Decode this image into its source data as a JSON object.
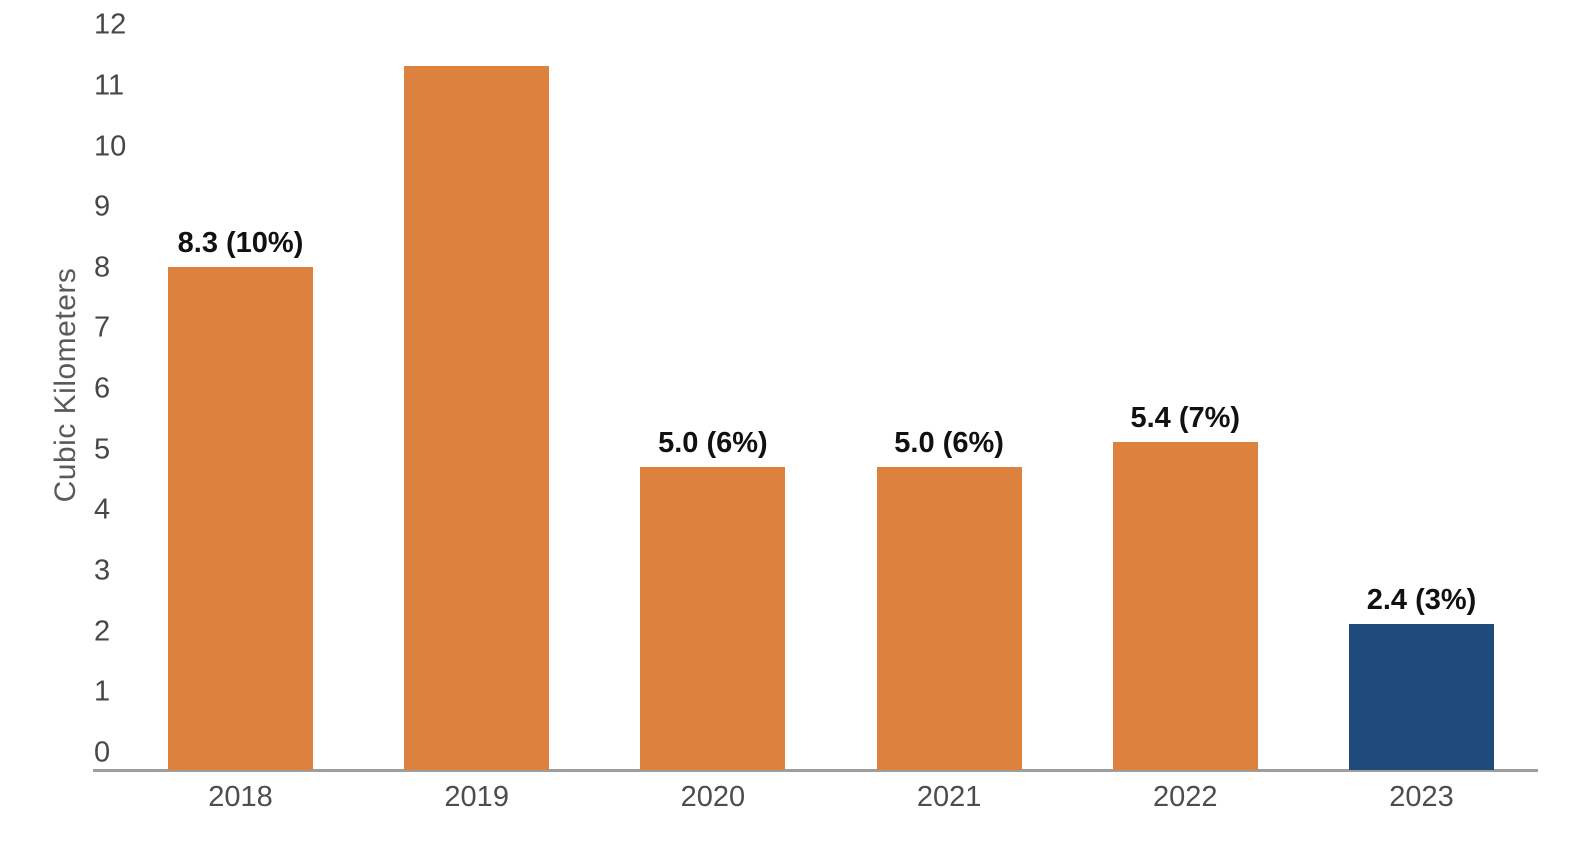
{
  "chart_data": {
    "type": "bar",
    "title": "",
    "xlabel": "",
    "ylabel": "Cubic Kilometers",
    "categories": [
      "2018",
      "2019",
      "2020",
      "2021",
      "2022",
      "2023"
    ],
    "values": [
      8.3,
      11.6,
      5.0,
      5.0,
      5.4,
      2.4
    ],
    "bar_labels": [
      "8.3 (10%)",
      "",
      "5.0 (6%)",
      "5.0 (6%)",
      "5.4 (7%)",
      "2.4 (3%)"
    ],
    "bar_colors": [
      "#DD823E",
      "#DD823E",
      "#DD823E",
      "#DD823E",
      "#DD823E",
      "#1E4A7C"
    ],
    "yticks": [
      0,
      1,
      2,
      3,
      4,
      5,
      6,
      7,
      8,
      9,
      10,
      11,
      12
    ],
    "ylim": [
      0,
      12
    ],
    "grid": false,
    "legend_position": "none",
    "axis_line_color": "#9E9E9E",
    "tick_text_color": "#474747",
    "data_label_color": "#111111"
  }
}
